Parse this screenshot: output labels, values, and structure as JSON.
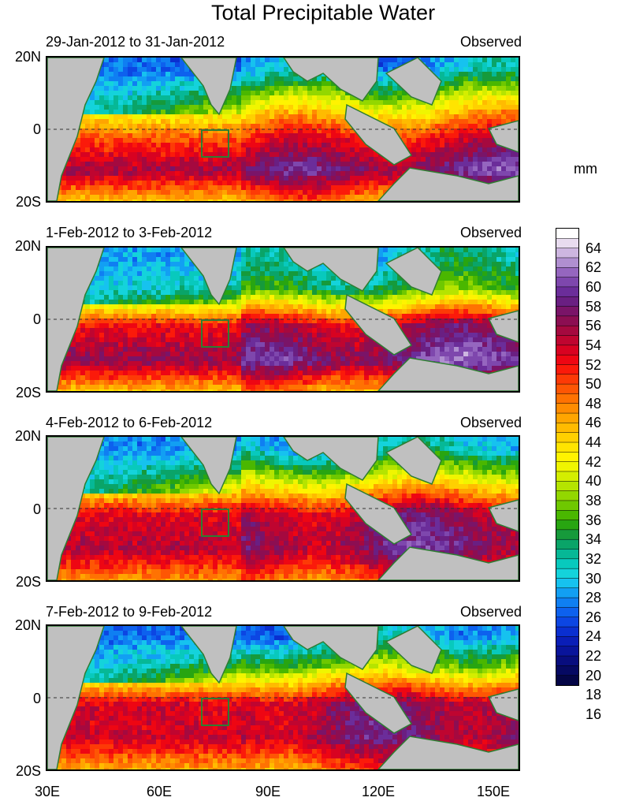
{
  "title": "Total Precipitable Water",
  "unit": "mm",
  "panels": [
    {
      "period": "29-Jan-2012 to 31-Jan-2012",
      "label": "Observed"
    },
    {
      "period": "1-Feb-2012 to 3-Feb-2012",
      "label": "Observed"
    },
    {
      "period": "4-Feb-2012 to 6-Feb-2012",
      "label": "Observed"
    },
    {
      "period": "7-Feb-2012 to 9-Feb-2012",
      "label": "Observed"
    }
  ],
  "lat_labels": [
    "20N",
    "0",
    "20S"
  ],
  "lon_labels": [
    "30E",
    "60E",
    "90E",
    "120E",
    "150E"
  ],
  "colorbar": {
    "labels": [
      "64",
      "62",
      "60",
      "58",
      "56",
      "54",
      "52",
      "50",
      "48",
      "46",
      "44",
      "42",
      "40",
      "38",
      "36",
      "34",
      "32",
      "30",
      "28",
      "26",
      "24",
      "22",
      "20",
      "18",
      "16"
    ],
    "colors": [
      "#ffffff",
      "#e8dcef",
      "#cdb6e0",
      "#b08fd0",
      "#9566bf",
      "#7e47ad",
      "#6b2d9a",
      "#6a1f82",
      "#7a1468",
      "#8c0e52",
      "#a5093f",
      "#bf0530",
      "#d80221",
      "#ee0613",
      "#fb1a0a",
      "#fd3a06",
      "#fe5604",
      "#ff7202",
      "#ff8c01",
      "#ffa500",
      "#ffbb00",
      "#ffd000",
      "#ffe400",
      "#fff300",
      "#f0f500",
      "#d4ee00",
      "#b5e400",
      "#93d700",
      "#6fc800",
      "#4ab700",
      "#28a511",
      "#169a3b",
      "#0aa468",
      "#06b896",
      "#08c9bd",
      "#14d3db",
      "#16c2ef",
      "#129ff3",
      "#0f7ff2",
      "#0d61ee",
      "#0c46e3",
      "#0a2fd0",
      "#0a1eb7",
      "#09149b",
      "#080d7e",
      "#060962",
      "#040546"
    ],
    "land_color": "#c0c0c0",
    "coast_color": "#2e7d32"
  }
}
